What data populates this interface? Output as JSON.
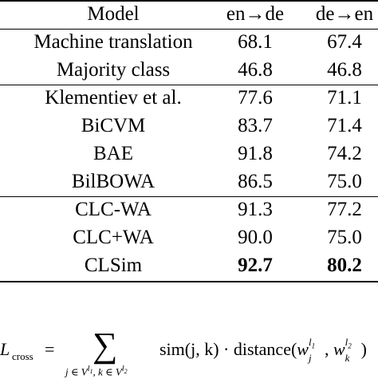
{
  "table": {
    "columns": [
      "Model",
      "en→de",
      "de→en"
    ],
    "groups": [
      [
        [
          "Machine translation",
          "68.1",
          "67.4"
        ],
        [
          "Majority class",
          "46.8",
          "46.8"
        ]
      ],
      [
        [
          "Klementiev et al.",
          "77.6",
          "71.1"
        ],
        [
          "BiCVM",
          "83.7",
          "71.4"
        ],
        [
          "BAE",
          "91.8",
          "74.2"
        ],
        [
          "BilBOWA",
          "86.5",
          "75.0"
        ]
      ],
      [
        [
          "CLC-WA",
          "91.3",
          "77.2"
        ],
        [
          "CLC+WA",
          "90.0",
          "75.0"
        ],
        [
          "CLSim",
          "92.7",
          "80.2"
        ]
      ]
    ],
    "bold_row": "CLSim"
  },
  "formula": {
    "lhs": "L",
    "lhs_sub": "cross",
    "eq": "=",
    "sum": "∑",
    "sum_sub": [
      "j",
      " ∈ V",
      "l",
      "1",
      ", k ∈ V",
      "l",
      "2"
    ],
    "body": "sim(j, k) · distance(",
    "w1": "w",
    "w1_sub": "j",
    "w1_sup": "l",
    "w1_sup_sub": "1",
    "comma": ", ",
    "w2": "w",
    "w2_sub": "k",
    "w2_sup": "l",
    "w2_sup_sub": "2",
    "close": ")"
  }
}
